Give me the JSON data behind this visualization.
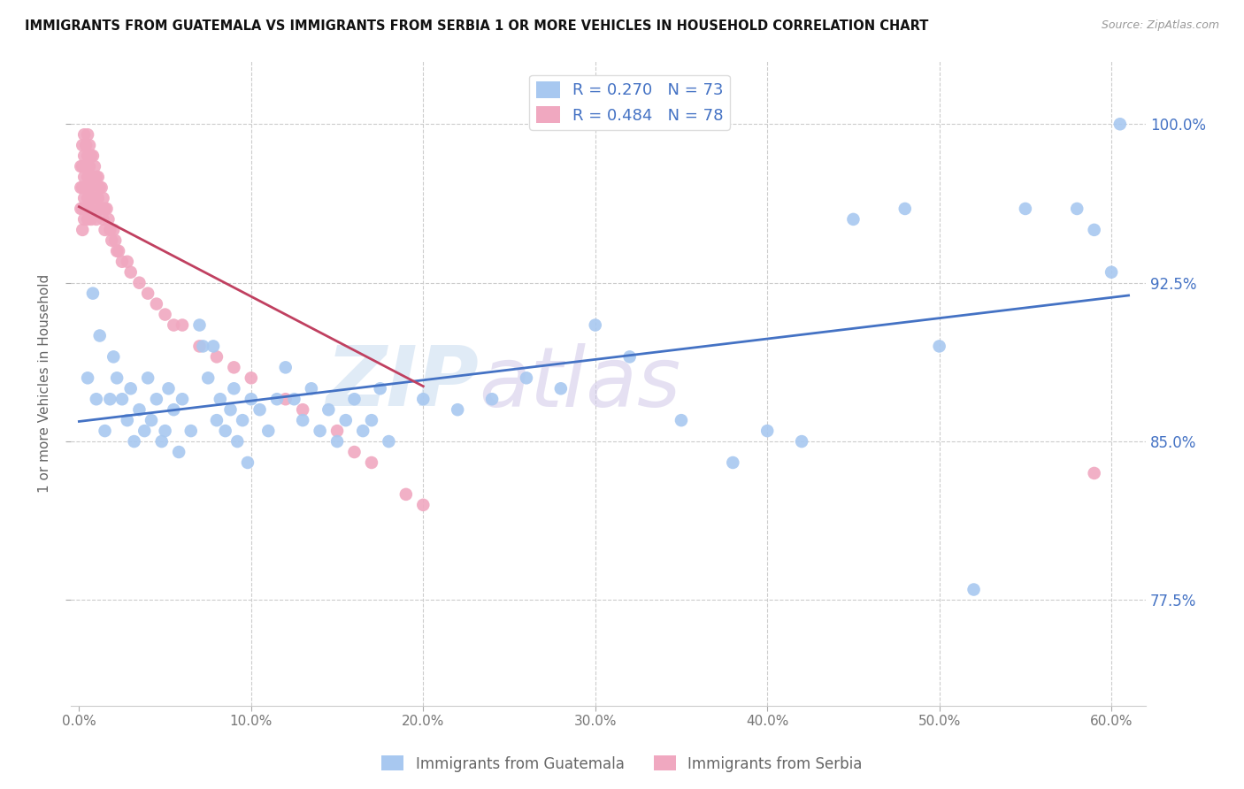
{
  "title": "IMMIGRANTS FROM GUATEMALA VS IMMIGRANTS FROM SERBIA 1 OR MORE VEHICLES IN HOUSEHOLD CORRELATION CHART",
  "source": "Source: ZipAtlas.com",
  "ylabel": "1 or more Vehicles in Household",
  "x_ticks": [
    "0.0%",
    "10.0%",
    "20.0%",
    "30.0%",
    "40.0%",
    "50.0%",
    "60.0%"
  ],
  "x_tick_vals": [
    0.0,
    0.1,
    0.2,
    0.3,
    0.4,
    0.5,
    0.6
  ],
  "y_ticks": [
    "77.5%",
    "85.0%",
    "92.5%",
    "100.0%"
  ],
  "y_tick_vals": [
    0.775,
    0.85,
    0.925,
    1.0
  ],
  "xlim": [
    -0.005,
    0.62
  ],
  "ylim": [
    0.725,
    1.03
  ],
  "blue_R": 0.27,
  "blue_N": 73,
  "pink_R": 0.484,
  "pink_N": 78,
  "blue_color": "#A8C8F0",
  "pink_color": "#F0A8C0",
  "blue_line_color": "#4472C4",
  "pink_line_color": "#C04060",
  "watermark_zip": "ZIP",
  "watermark_atlas": "atlas",
  "legend_blue_label": "Immigrants from Guatemala",
  "legend_pink_label": "Immigrants from Serbia",
  "blue_scatter_x": [
    0.005,
    0.008,
    0.01,
    0.012,
    0.015,
    0.018,
    0.02,
    0.022,
    0.025,
    0.028,
    0.03,
    0.032,
    0.035,
    0.038,
    0.04,
    0.042,
    0.045,
    0.048,
    0.05,
    0.052,
    0.055,
    0.058,
    0.06,
    0.065,
    0.07,
    0.072,
    0.075,
    0.078,
    0.08,
    0.082,
    0.085,
    0.088,
    0.09,
    0.092,
    0.095,
    0.098,
    0.1,
    0.105,
    0.11,
    0.115,
    0.12,
    0.125,
    0.13,
    0.135,
    0.14,
    0.145,
    0.15,
    0.155,
    0.16,
    0.165,
    0.17,
    0.175,
    0.18,
    0.2,
    0.22,
    0.24,
    0.26,
    0.28,
    0.3,
    0.32,
    0.35,
    0.38,
    0.4,
    0.42,
    0.45,
    0.48,
    0.5,
    0.52,
    0.55,
    0.58,
    0.59,
    0.6,
    0.605
  ],
  "blue_scatter_y": [
    0.88,
    0.92,
    0.87,
    0.9,
    0.855,
    0.87,
    0.89,
    0.88,
    0.87,
    0.86,
    0.875,
    0.85,
    0.865,
    0.855,
    0.88,
    0.86,
    0.87,
    0.85,
    0.855,
    0.875,
    0.865,
    0.845,
    0.87,
    0.855,
    0.905,
    0.895,
    0.88,
    0.895,
    0.86,
    0.87,
    0.855,
    0.865,
    0.875,
    0.85,
    0.86,
    0.84,
    0.87,
    0.865,
    0.855,
    0.87,
    0.885,
    0.87,
    0.86,
    0.875,
    0.855,
    0.865,
    0.85,
    0.86,
    0.87,
    0.855,
    0.86,
    0.875,
    0.85,
    0.87,
    0.865,
    0.87,
    0.88,
    0.875,
    0.905,
    0.89,
    0.86,
    0.84,
    0.855,
    0.85,
    0.955,
    0.96,
    0.895,
    0.78,
    0.96,
    0.96,
    0.95,
    0.93,
    1.0
  ],
  "pink_scatter_x": [
    0.001,
    0.001,
    0.001,
    0.002,
    0.002,
    0.002,
    0.002,
    0.002,
    0.003,
    0.003,
    0.003,
    0.003,
    0.003,
    0.004,
    0.004,
    0.004,
    0.004,
    0.005,
    0.005,
    0.005,
    0.005,
    0.005,
    0.006,
    0.006,
    0.006,
    0.006,
    0.007,
    0.007,
    0.007,
    0.007,
    0.008,
    0.008,
    0.008,
    0.009,
    0.009,
    0.009,
    0.01,
    0.01,
    0.01,
    0.011,
    0.011,
    0.012,
    0.012,
    0.013,
    0.013,
    0.014,
    0.014,
    0.015,
    0.015,
    0.016,
    0.017,
    0.018,
    0.019,
    0.02,
    0.021,
    0.022,
    0.023,
    0.025,
    0.028,
    0.03,
    0.035,
    0.04,
    0.045,
    0.05,
    0.055,
    0.06,
    0.07,
    0.08,
    0.09,
    0.1,
    0.12,
    0.13,
    0.15,
    0.16,
    0.17,
    0.19,
    0.2,
    0.59
  ],
  "pink_scatter_y": [
    0.98,
    0.97,
    0.96,
    0.99,
    0.98,
    0.97,
    0.96,
    0.95,
    0.995,
    0.985,
    0.975,
    0.965,
    0.955,
    0.99,
    0.98,
    0.97,
    0.96,
    0.995,
    0.985,
    0.975,
    0.965,
    0.955,
    0.99,
    0.98,
    0.97,
    0.96,
    0.985,
    0.975,
    0.965,
    0.955,
    0.985,
    0.975,
    0.965,
    0.98,
    0.97,
    0.96,
    0.975,
    0.965,
    0.955,
    0.975,
    0.965,
    0.97,
    0.96,
    0.97,
    0.96,
    0.965,
    0.955,
    0.96,
    0.95,
    0.96,
    0.955,
    0.95,
    0.945,
    0.95,
    0.945,
    0.94,
    0.94,
    0.935,
    0.935,
    0.93,
    0.925,
    0.92,
    0.915,
    0.91,
    0.905,
    0.905,
    0.895,
    0.89,
    0.885,
    0.88,
    0.87,
    0.865,
    0.855,
    0.845,
    0.84,
    0.825,
    0.82,
    0.835
  ]
}
